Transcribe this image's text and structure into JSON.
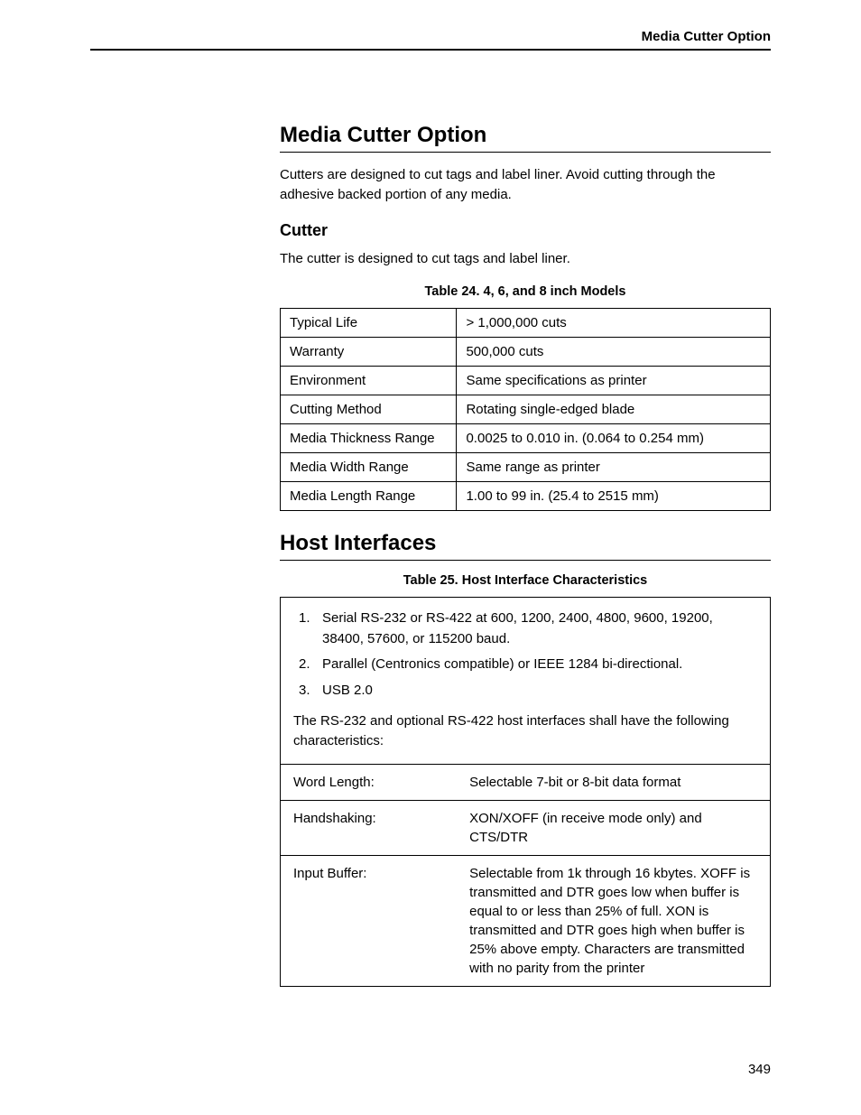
{
  "header": {
    "title": "Media Cutter Option"
  },
  "section1": {
    "title": "Media Cutter Option",
    "intro": "Cutters are designed to cut tags and label liner. Avoid cutting through the adhesive backed portion of any media.",
    "subsection": {
      "title": "Cutter",
      "text": "The cutter is designed to cut tags and label liner."
    },
    "table": {
      "caption": "Table 24. 4, 6, and 8 inch Models",
      "rows": [
        {
          "label": "Typical Life",
          "value": "> 1,000,000 cuts"
        },
        {
          "label": "Warranty",
          "value": "500,000 cuts"
        },
        {
          "label": "Environment",
          "value": "Same specifications as printer"
        },
        {
          "label": "Cutting Method",
          "value": "Rotating single-edged blade"
        },
        {
          "label": "Media Thickness Range",
          "value": "0.0025 to 0.010 in. (0.064 to 0.254 mm)"
        },
        {
          "label": "Media Width Range",
          "value": "Same range as printer"
        },
        {
          "label": "Media Length Range",
          "value": "1.00 to 99 in. (25.4 to 2515 mm)"
        }
      ]
    }
  },
  "section2": {
    "title": "Host Interfaces",
    "table_caption": "Table 25. Host Interface Characteristics",
    "list": [
      {
        "num": "1.",
        "text": "Serial RS-232 or RS-422 at 600, 1200, 2400, 4800, 9600, 19200, 38400, 57600, or 115200 baud."
      },
      {
        "num": "2.",
        "text": "Parallel (Centronics compatible) or IEEE 1284 bi-directional."
      },
      {
        "num": "3.",
        "text": "USB 2.0"
      }
    ],
    "note": "The RS-232 and optional RS-422 host interfaces shall have the following characteristics:",
    "char_rows": [
      {
        "label": "Word Length:",
        "value": "Selectable 7-bit or 8-bit data format"
      },
      {
        "label": "Handshaking:",
        "value": "XON/XOFF (in receive mode only) and CTS/DTR"
      },
      {
        "label": "Input Buffer:",
        "value": "Selectable from 1k through 16 kbytes. XOFF is transmitted and DTR goes low when buffer is equal to or less than 25% of full. XON is transmitted and DTR goes high when buffer is 25% above empty. Characters are transmitted with no parity from the printer"
      }
    ]
  },
  "page_number": "349"
}
